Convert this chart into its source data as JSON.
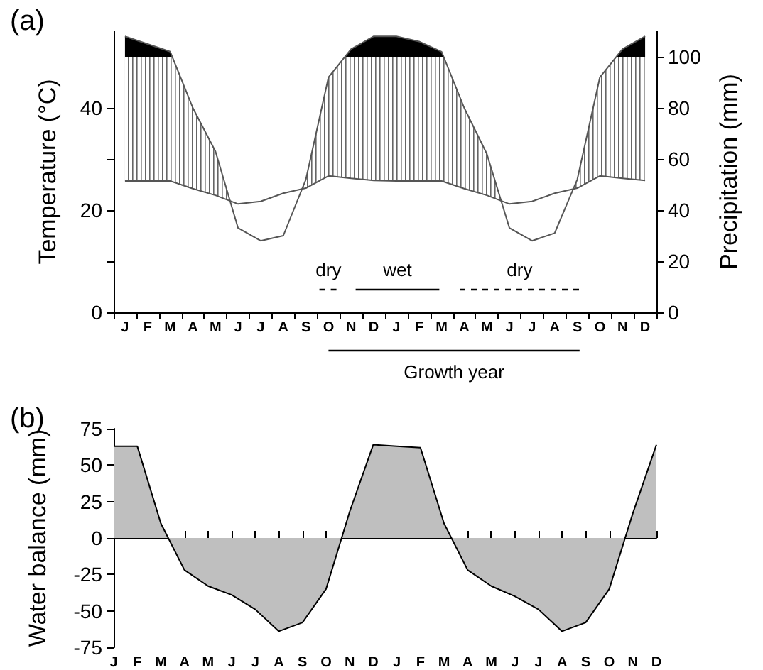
{
  "chart_data": [
    {
      "type": "line",
      "title": "(a)",
      "ylabel": "Temperature (°C)",
      "y2label": "Precipitation (mm)",
      "categories": [
        "J",
        "F",
        "M",
        "A",
        "M",
        "J",
        "J",
        "A",
        "S",
        "O",
        "N",
        "D",
        "J",
        "F",
        "M",
        "A",
        "M",
        "J",
        "J",
        "A",
        "S",
        "O",
        "N",
        "D"
      ],
      "ylim": [
        0,
        55
      ],
      "yticks": [
        0,
        {
          "value": 10,
          "label": null
        },
        20,
        {
          "value": 30,
          "label": null
        },
        40
      ],
      "y2lim": [
        0,
        110
      ],
      "y2ticks": [
        0,
        20,
        40,
        60,
        80,
        100
      ],
      "series": [
        {
          "color": "#555555",
          "values": [
            25.7,
            25.7,
            25.7,
            24.2,
            22.9,
            21.2,
            21.7,
            23.3,
            24.3,
            26.7,
            26.2,
            25.8,
            25.7,
            25.7,
            25.7,
            24.2,
            22.9,
            21.2,
            21.7,
            23.3,
            24.3,
            26.7,
            26.2,
            25.8
          ]
        },
        {
          "color": "#555555",
          "axis": "y2",
          "values": [
            108,
            105,
            102,
            80,
            63,
            33,
            28,
            30,
            52,
            92,
            103,
            108,
            108,
            106,
            102,
            80,
            62,
            33,
            28,
            31,
            52,
            92,
            103,
            108
          ]
        }
      ],
      "annotations": [
        "dry",
        "wet",
        "dry",
        "Growth year"
      ],
      "marker": "none"
    },
    {
      "type": "area",
      "title": "(b)",
      "ylabel": "Water balance (mm)",
      "categories": [
        "J",
        "F",
        "M",
        "A",
        "M",
        "J",
        "J",
        "A",
        "S",
        "O",
        "N",
        "D",
        "J",
        "F",
        "M",
        "A",
        "M",
        "J",
        "J",
        "A",
        "S",
        "O",
        "N",
        "D"
      ],
      "ylim": [
        -75,
        75
      ],
      "yticks": [
        -75,
        -50,
        -25,
        0,
        25,
        50,
        75
      ],
      "series": [
        {
          "color": "#bfbfbf",
          "values": [
            63,
            63,
            10,
            -22,
            -33,
            -39,
            -49,
            -64,
            -58,
            -35,
            18,
            64,
            63,
            62,
            10,
            -22,
            -33,
            -40,
            -49,
            -64,
            -58,
            -35,
            17,
            64
          ]
        }
      ],
      "marker": "none"
    }
  ]
}
